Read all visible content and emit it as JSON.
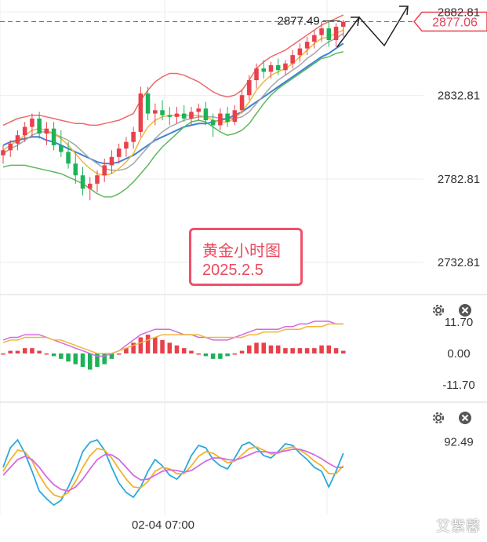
{
  "chart_data": [
    {
      "type": "candlestick",
      "title": "黄金小时图",
      "subtitle": "2025.2.5",
      "y_ticks": [
        "2882.81",
        "2832.81",
        "2782.81",
        "2732.81"
      ],
      "ylim": [
        2715,
        2890
      ],
      "last_price": "2877.06",
      "high_marker": "2877.49",
      "candles": [
        {
          "o": 2797,
          "h": 2803,
          "l": 2792,
          "c": 2800
        },
        {
          "o": 2800,
          "h": 2806,
          "l": 2796,
          "c": 2804
        },
        {
          "o": 2804,
          "h": 2812,
          "l": 2800,
          "c": 2809
        },
        {
          "o": 2809,
          "h": 2817,
          "l": 2805,
          "c": 2814
        },
        {
          "o": 2814,
          "h": 2822,
          "l": 2808,
          "c": 2819
        },
        {
          "o": 2819,
          "h": 2823,
          "l": 2807,
          "c": 2810
        },
        {
          "o": 2810,
          "h": 2817,
          "l": 2803,
          "c": 2813
        },
        {
          "o": 2813,
          "h": 2817,
          "l": 2800,
          "c": 2803
        },
        {
          "o": 2803,
          "h": 2812,
          "l": 2796,
          "c": 2799
        },
        {
          "o": 2799,
          "h": 2805,
          "l": 2789,
          "c": 2792
        },
        {
          "o": 2792,
          "h": 2799,
          "l": 2780,
          "c": 2785
        },
        {
          "o": 2785,
          "h": 2790,
          "l": 2773,
          "c": 2777
        },
        {
          "o": 2777,
          "h": 2784,
          "l": 2770,
          "c": 2780
        },
        {
          "o": 2780,
          "h": 2788,
          "l": 2775,
          "c": 2785
        },
        {
          "o": 2785,
          "h": 2795,
          "l": 2781,
          "c": 2791
        },
        {
          "o": 2791,
          "h": 2800,
          "l": 2786,
          "c": 2796
        },
        {
          "o": 2796,
          "h": 2804,
          "l": 2792,
          "c": 2801
        },
        {
          "o": 2801,
          "h": 2808,
          "l": 2796,
          "c": 2805
        },
        {
          "o": 2805,
          "h": 2814,
          "l": 2801,
          "c": 2811
        },
        {
          "o": 2811,
          "h": 2838,
          "l": 2808,
          "c": 2834
        },
        {
          "o": 2834,
          "h": 2838,
          "l": 2818,
          "c": 2822
        },
        {
          "o": 2822,
          "h": 2828,
          "l": 2815,
          "c": 2824
        },
        {
          "o": 2824,
          "h": 2830,
          "l": 2818,
          "c": 2821
        },
        {
          "o": 2821,
          "h": 2826,
          "l": 2815,
          "c": 2820
        },
        {
          "o": 2820,
          "h": 2826,
          "l": 2816,
          "c": 2822
        },
        {
          "o": 2822,
          "h": 2827,
          "l": 2817,
          "c": 2819
        },
        {
          "o": 2819,
          "h": 2826,
          "l": 2815,
          "c": 2823
        },
        {
          "o": 2823,
          "h": 2828,
          "l": 2818,
          "c": 2825
        },
        {
          "o": 2825,
          "h": 2829,
          "l": 2815,
          "c": 2818
        },
        {
          "o": 2818,
          "h": 2822,
          "l": 2808,
          "c": 2815
        },
        {
          "o": 2815,
          "h": 2825,
          "l": 2812,
          "c": 2822
        },
        {
          "o": 2822,
          "h": 2826,
          "l": 2814,
          "c": 2817
        },
        {
          "o": 2817,
          "h": 2827,
          "l": 2815,
          "c": 2824
        },
        {
          "o": 2824,
          "h": 2836,
          "l": 2822,
          "c": 2833
        },
        {
          "o": 2833,
          "h": 2845,
          "l": 2830,
          "c": 2842
        },
        {
          "o": 2842,
          "h": 2852,
          "l": 2837,
          "c": 2849
        },
        {
          "o": 2849,
          "h": 2854,
          "l": 2843,
          "c": 2847
        },
        {
          "o": 2847,
          "h": 2853,
          "l": 2843,
          "c": 2851
        },
        {
          "o": 2851,
          "h": 2855,
          "l": 2845,
          "c": 2848
        },
        {
          "o": 2848,
          "h": 2854,
          "l": 2845,
          "c": 2852
        },
        {
          "o": 2852,
          "h": 2860,
          "l": 2849,
          "c": 2857
        },
        {
          "o": 2857,
          "h": 2864,
          "l": 2853,
          "c": 2861
        },
        {
          "o": 2861,
          "h": 2868,
          "l": 2857,
          "c": 2865
        },
        {
          "o": 2865,
          "h": 2872,
          "l": 2861,
          "c": 2869
        },
        {
          "o": 2869,
          "h": 2877,
          "l": 2865,
          "c": 2873
        },
        {
          "o": 2873,
          "h": 2877,
          "l": 2862,
          "c": 2866
        },
        {
          "o": 2866,
          "h": 2876,
          "l": 2862,
          "c": 2874
        },
        {
          "o": 2874,
          "h": 2878,
          "l": 2868,
          "c": 2877
        }
      ],
      "bollinger_upper": [
        2815,
        2817,
        2819,
        2820,
        2821,
        2821,
        2820,
        2819,
        2818,
        2817,
        2816,
        2816,
        2815,
        2815,
        2816,
        2817,
        2818,
        2820,
        2822,
        2830,
        2836,
        2841,
        2844,
        2846,
        2846,
        2845,
        2843,
        2841,
        2838,
        2835,
        2833,
        2832,
        2833,
        2836,
        2842,
        2849,
        2853,
        2856,
        2858,
        2860,
        2863,
        2866,
        2869,
        2872,
        2875,
        2877,
        2879,
        2881
      ],
      "bollinger_mid": [
        2803,
        2805,
        2806,
        2807,
        2808,
        2808,
        2806,
        2805,
        2803,
        2801,
        2799,
        2797,
        2795,
        2793,
        2792,
        2792,
        2793,
        2795,
        2797,
        2800,
        2803,
        2806,
        2808,
        2810,
        2812,
        2814,
        2815,
        2816,
        2816,
        2817,
        2818,
        2819,
        2821,
        2823,
        2826,
        2829,
        2832,
        2835,
        2838,
        2841,
        2844,
        2847,
        2850,
        2853,
        2856,
        2858,
        2861,
        2864
      ],
      "bollinger_lower": [
        2790,
        2791,
        2791,
        2791,
        2790,
        2789,
        2788,
        2787,
        2786,
        2784,
        2782,
        2780,
        2777,
        2774,
        2772,
        2772,
        2774,
        2777,
        2781,
        2786,
        2791,
        2797,
        2802,
        2806,
        2810,
        2814,
        2817,
        2818,
        2817,
        2814,
        2811,
        2809,
        2810,
        2812,
        2816,
        2822,
        2828,
        2833,
        2837,
        2840,
        2843,
        2846,
        2849,
        2852,
        2855,
        2856,
        2858,
        2859
      ],
      "ma_fast": [
        2800,
        2803,
        2806,
        2809,
        2812,
        2813,
        2812,
        2810,
        2807,
        2803,
        2798,
        2793,
        2789,
        2786,
        2785,
        2786,
        2789,
        2793,
        2798,
        2807,
        2814,
        2818,
        2820,
        2821,
        2821,
        2821,
        2821,
        2821,
        2820,
        2818,
        2817,
        2817,
        2819,
        2823,
        2829,
        2836,
        2841,
        2845,
        2847,
        2849,
        2852,
        2856,
        2860,
        2864,
        2867,
        2868,
        2870,
        2872
      ],
      "ma_slow": [
        2798,
        2801,
        2803,
        2806,
        2809,
        2811,
        2811,
        2810,
        2808,
        2806,
        2803,
        2799,
        2795,
        2792,
        2789,
        2788,
        2788,
        2789,
        2792,
        2797,
        2802,
        2807,
        2811,
        2814,
        2816,
        2818,
        2819,
        2820,
        2820,
        2820,
        2819,
        2819,
        2819,
        2820,
        2823,
        2828,
        2833,
        2838,
        2842,
        2845,
        2848,
        2851,
        2855,
        2858,
        2862,
        2865,
        2867,
        2870
      ]
    },
    {
      "type": "bar",
      "name": "MACD",
      "y_ticks": [
        "11.70",
        "0.00",
        "-11.70"
      ],
      "ylim": [
        -11.7,
        11.7
      ],
      "histogram": [
        0,
        1,
        1,
        2,
        2,
        1,
        0,
        -1,
        -2,
        -3,
        -4,
        -5,
        -6,
        -5,
        -4,
        -2,
        0,
        2,
        4,
        6,
        7,
        6,
        5,
        4,
        3,
        2,
        1,
        0,
        -1,
        -2,
        -2,
        -1,
        0,
        1,
        3,
        4,
        4,
        3,
        3,
        2,
        2,
        2,
        2,
        2,
        3,
        3,
        2,
        1
      ],
      "dif": [
        5,
        6,
        6,
        7,
        7,
        7,
        6,
        5,
        4,
        3,
        2,
        1,
        0,
        -1,
        -1,
        0,
        1,
        3,
        5,
        7,
        8,
        9,
        9,
        9,
        8,
        7,
        7,
        6,
        6,
        5,
        5,
        5,
        6,
        7,
        8,
        9,
        9,
        9,
        9,
        10,
        10,
        11,
        11,
        12,
        12,
        12,
        11,
        11
      ],
      "dea": [
        4,
        5,
        5,
        6,
        6,
        6,
        6,
        5,
        5,
        4,
        3,
        2,
        1,
        0,
        0,
        0,
        1,
        2,
        3,
        4,
        5,
        6,
        7,
        7,
        7,
        7,
        7,
        7,
        6,
        6,
        6,
        6,
        6,
        6,
        7,
        7,
        8,
        8,
        8,
        9,
        9,
        9,
        10,
        10,
        10,
        11,
        11,
        11
      ]
    },
    {
      "type": "line",
      "name": "Oscillator",
      "y_ticks": [
        "92.49"
      ],
      "x_ticks": [
        "02-04 07:00"
      ],
      "ylim": [
        0,
        100
      ],
      "series": [
        {
          "color": "#2ba9dc",
          "values": [
            60,
            85,
            95,
            78,
            55,
            30,
            20,
            12,
            18,
            35,
            55,
            80,
            92,
            95,
            82,
            60,
            40,
            28,
            22,
            35,
            55,
            70,
            62,
            50,
            45,
            55,
            75,
            88,
            85,
            70,
            62,
            58,
            72,
            88,
            92,
            85,
            75,
            72,
            80,
            90,
            88,
            78,
            70,
            60,
            55,
            35,
            55,
            78
          ]
        },
        {
          "color": "#f1b32e",
          "values": [
            55,
            70,
            82,
            80,
            68,
            50,
            35,
            25,
            22,
            28,
            42,
            60,
            75,
            84,
            82,
            72,
            58,
            45,
            35,
            34,
            42,
            55,
            60,
            58,
            52,
            52,
            62,
            74,
            80,
            78,
            72,
            66,
            68,
            76,
            84,
            86,
            82,
            77,
            78,
            84,
            86,
            82,
            76,
            68,
            62,
            52,
            52,
            62
          ]
        },
        {
          "color": "#d36be0",
          "values": [
            50,
            60,
            70,
            74,
            70,
            60,
            48,
            38,
            32,
            30,
            35,
            45,
            58,
            70,
            76,
            76,
            70,
            60,
            50,
            44,
            45,
            50,
            55,
            57,
            56,
            54,
            56,
            62,
            68,
            72,
            72,
            70,
            69,
            72,
            76,
            80,
            80,
            79,
            79,
            81,
            83,
            83,
            80,
            76,
            71,
            65,
            60,
            60
          ]
        }
      ]
    }
  ],
  "toolbar": {
    "settings_icon": "gear-icon",
    "close_icon": "close-icon"
  },
  "watermark": "艾紫馨",
  "colors": {
    "up": "#e8414b",
    "down": "#1db257",
    "upper_band": "#ec6a68",
    "mid_band": "#3f83d6",
    "lower_band": "#5cb85c",
    "ma_fast": "#f0b73a",
    "ma_slow": "#a6a6a6",
    "price_line": "#e8414b"
  }
}
